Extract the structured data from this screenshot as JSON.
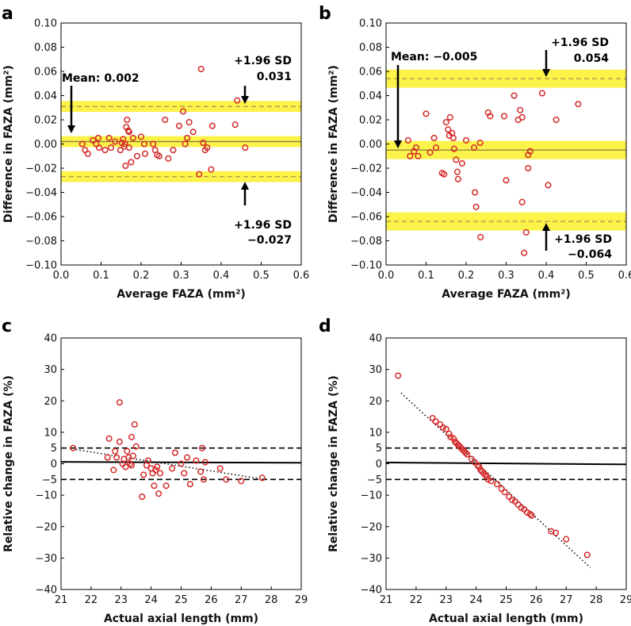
{
  "figure": {
    "background": "#ffffff"
  },
  "chart_data": [
    {
      "id": "a",
      "type": "scatter",
      "panel_label": "a",
      "xlabel": "Average FAZA (mm²)",
      "ylabel": "Difference in FAZA (mm²)",
      "xlim": [
        0,
        0.6
      ],
      "ylim": [
        -0.1,
        0.1
      ],
      "xticks": [
        0,
        0.1,
        0.2,
        0.3,
        0.4,
        0.5,
        0.6
      ],
      "xtick_labels": [
        "0.0",
        "0.1",
        "0.2",
        "0.3",
        "0.4",
        "0.5",
        "0.6"
      ],
      "yticks": [
        -0.1,
        -0.08,
        -0.06,
        -0.04,
        -0.02,
        0,
        0.02,
        0.04,
        0.06,
        0.08,
        0.1
      ],
      "ytick_labels": [
        "−0.10",
        "−0.08",
        "−0.06",
        "−0.04",
        "−0.02",
        "0.00",
        "0.02",
        "0.04",
        "0.06",
        "0.08",
        "0.10"
      ],
      "mean": 0.002,
      "upper_loa": 0.031,
      "lower_loa": -0.027,
      "band_halfwidth": 0.0045,
      "colors": {
        "band": "#fbf24a",
        "marker": "#d42a2a",
        "dash": "#b5894a",
        "mean_line": "#8a7d40"
      },
      "annotations": {
        "mean_label": "Mean: 0.002",
        "upper_label": "+1.96 SD",
        "upper_value": "0.031",
        "lower_label": "+1.96 SD",
        "lower_value": "−0.027"
      },
      "points": [
        [
          0.053,
          0.0
        ],
        [
          0.06,
          -0.005
        ],
        [
          0.067,
          -0.008
        ],
        [
          0.08,
          0.003
        ],
        [
          0.088,
          0.0
        ],
        [
          0.093,
          0.005
        ],
        [
          0.095,
          -0.003
        ],
        [
          0.11,
          -0.005
        ],
        [
          0.12,
          0.005
        ],
        [
          0.125,
          -0.003
        ],
        [
          0.135,
          0.002
        ],
        [
          0.148,
          -0.005
        ],
        [
          0.152,
          0.001
        ],
        [
          0.155,
          0.004
        ],
        [
          0.158,
          -0.002
        ],
        [
          0.16,
          0.0
        ],
        [
          0.161,
          -0.018
        ],
        [
          0.163,
          0.014
        ],
        [
          0.165,
          0.02
        ],
        [
          0.168,
          0.011
        ],
        [
          0.17,
          0.01
        ],
        [
          0.17,
          -0.003
        ],
        [
          0.175,
          -0.015
        ],
        [
          0.18,
          0.005
        ],
        [
          0.19,
          -0.01
        ],
        [
          0.2,
          0.006
        ],
        [
          0.208,
          0.0
        ],
        [
          0.21,
          -0.008
        ],
        [
          0.23,
          0.0
        ],
        [
          0.235,
          -0.005
        ],
        [
          0.24,
          -0.009
        ],
        [
          0.245,
          -0.01
        ],
        [
          0.26,
          0.02
        ],
        [
          0.268,
          -0.012
        ],
        [
          0.28,
          -0.005
        ],
        [
          0.295,
          0.015
        ],
        [
          0.305,
          0.027
        ],
        [
          0.31,
          0.0
        ],
        [
          0.315,
          0.005
        ],
        [
          0.32,
          0.018
        ],
        [
          0.33,
          0.01
        ],
        [
          0.345,
          -0.025
        ],
        [
          0.35,
          0.062
        ],
        [
          0.355,
          0.001
        ],
        [
          0.36,
          -0.005
        ],
        [
          0.365,
          -0.003
        ],
        [
          0.375,
          -0.021
        ],
        [
          0.378,
          0.015
        ],
        [
          0.435,
          0.016
        ],
        [
          0.44,
          0.036
        ],
        [
          0.46,
          -0.003
        ]
      ]
    },
    {
      "id": "b",
      "type": "scatter",
      "panel_label": "b",
      "xlabel": "Average FAZA (mm²)",
      "ylabel": "Difference in FAZA (mm²)",
      "xlim": [
        0,
        0.6
      ],
      "ylim": [
        -0.1,
        0.1
      ],
      "xticks": [
        0,
        0.1,
        0.2,
        0.3,
        0.4,
        0.5,
        0.6
      ],
      "xtick_labels": [
        "0.0",
        "0.1",
        "0.2",
        "0.3",
        "0.4",
        "0.5",
        "0.6"
      ],
      "yticks": [
        -0.1,
        -0.08,
        -0.06,
        -0.04,
        -0.02,
        0,
        0.02,
        0.04,
        0.06,
        0.08,
        0.1
      ],
      "ytick_labels": [
        "−0.10",
        "−0.08",
        "−0.06",
        "−0.04",
        "−0.02",
        "0.00",
        "0.02",
        "0.04",
        "0.06",
        "0.08",
        "0.10"
      ],
      "mean": -0.005,
      "upper_loa": 0.054,
      "lower_loa": -0.064,
      "band_halfwidth": 0.0075,
      "colors": {
        "band": "#fbf24a",
        "marker": "#d42a2a",
        "dash": "#b5894a",
        "mean_line": "#8a7d40"
      },
      "annotations": {
        "mean_label": "Mean: −0.005",
        "upper_label": "+1.96 SD",
        "upper_value": "0.054",
        "lower_label": "+1.96 SD",
        "lower_value": "−0.064"
      },
      "points": [
        [
          0.055,
          0.003
        ],
        [
          0.06,
          -0.01
        ],
        [
          0.07,
          -0.006
        ],
        [
          0.075,
          -0.003
        ],
        [
          0.08,
          -0.01
        ],
        [
          0.1,
          0.025
        ],
        [
          0.11,
          -0.007
        ],
        [
          0.12,
          0.005
        ],
        [
          0.125,
          -0.003
        ],
        [
          0.14,
          -0.024
        ],
        [
          0.145,
          -0.025
        ],
        [
          0.15,
          0.018
        ],
        [
          0.155,
          0.012
        ],
        [
          0.158,
          0.007
        ],
        [
          0.16,
          0.022
        ],
        [
          0.165,
          0.009
        ],
        [
          0.168,
          0.005
        ],
        [
          0.17,
          -0.004
        ],
        [
          0.175,
          -0.013
        ],
        [
          0.178,
          -0.023
        ],
        [
          0.18,
          -0.029
        ],
        [
          0.19,
          -0.016
        ],
        [
          0.2,
          0.003
        ],
        [
          0.22,
          -0.003
        ],
        [
          0.222,
          -0.04
        ],
        [
          0.225,
          -0.052
        ],
        [
          0.235,
          0.001
        ],
        [
          0.236,
          -0.077
        ],
        [
          0.255,
          0.026
        ],
        [
          0.26,
          0.023
        ],
        [
          0.295,
          0.023
        ],
        [
          0.3,
          -0.03
        ],
        [
          0.32,
          0.04
        ],
        [
          0.33,
          0.02
        ],
        [
          0.335,
          0.028
        ],
        [
          0.34,
          0.022
        ],
        [
          0.34,
          -0.048
        ],
        [
          0.35,
          -0.073
        ],
        [
          0.345,
          -0.09
        ],
        [
          0.355,
          -0.009
        ],
        [
          0.355,
          -0.02
        ],
        [
          0.36,
          -0.006
        ],
        [
          0.39,
          0.042
        ],
        [
          0.405,
          -0.034
        ],
        [
          0.425,
          0.02
        ],
        [
          0.48,
          0.033
        ]
      ]
    },
    {
      "id": "c",
      "type": "scatter",
      "panel_label": "c",
      "xlabel": "Actual axial length  (mm)",
      "ylabel": "Relative change in FAZA (%)",
      "xlim": [
        21,
        29
      ],
      "ylim": [
        -40,
        40
      ],
      "xticks": [
        21,
        22,
        23,
        24,
        25,
        26,
        27,
        28,
        29
      ],
      "xtick_labels": [
        "21",
        "22",
        "23",
        "24",
        "25",
        "26",
        "27",
        "28",
        "29"
      ],
      "yticks": [
        -40,
        -30,
        -20,
        -10,
        -5,
        0,
        5,
        10,
        20,
        30,
        40
      ],
      "ytick_labels": [
        "−40",
        "−30",
        "−20",
        "−10",
        "−5",
        "0",
        "5",
        "10",
        "20",
        "30",
        "40"
      ],
      "hlines_dashed": [
        5,
        -5
      ],
      "mean_line_ends": [
        0.6,
        0.3
      ],
      "trend_line": [
        [
          21.5,
          4.5
        ],
        [
          27.8,
          -5.0
        ]
      ],
      "colors": {
        "marker": "#d42a2a",
        "line": "#000000"
      },
      "points": [
        [
          21.4,
          5
        ],
        [
          22.55,
          2
        ],
        [
          22.6,
          8
        ],
        [
          22.75,
          -2
        ],
        [
          22.8,
          4
        ],
        [
          22.85,
          2
        ],
        [
          22.95,
          7
        ],
        [
          22.95,
          19.5
        ],
        [
          23.05,
          0
        ],
        [
          23.1,
          1.5
        ],
        [
          23.15,
          -1
        ],
        [
          23.2,
          4
        ],
        [
          23.25,
          2
        ],
        [
          23.3,
          0
        ],
        [
          23.35,
          -0.5
        ],
        [
          23.35,
          8.5
        ],
        [
          23.4,
          2.5
        ],
        [
          23.45,
          12.5
        ],
        [
          23.5,
          5.5
        ],
        [
          23.7,
          -10.5
        ],
        [
          23.75,
          -3.5
        ],
        [
          23.85,
          -0.5
        ],
        [
          23.9,
          1
        ],
        [
          24.0,
          -1.5
        ],
        [
          24.05,
          -3
        ],
        [
          24.1,
          -7
        ],
        [
          24.15,
          -2
        ],
        [
          24.2,
          -1
        ],
        [
          24.25,
          -9.5
        ],
        [
          24.3,
          -3
        ],
        [
          24.5,
          -7
        ],
        [
          24.7,
          -1.5
        ],
        [
          24.8,
          3.5
        ],
        [
          25.0,
          0
        ],
        [
          25.1,
          -3
        ],
        [
          25.2,
          2
        ],
        [
          25.3,
          -6.5
        ],
        [
          25.5,
          1
        ],
        [
          25.65,
          -2.5
        ],
        [
          25.7,
          5
        ],
        [
          25.75,
          -5
        ],
        [
          25.8,
          0.5
        ],
        [
          26.3,
          -1.5
        ],
        [
          26.5,
          -5
        ],
        [
          27.0,
          -5.5
        ],
        [
          27.7,
          -4.5
        ]
      ]
    },
    {
      "id": "d",
      "type": "scatter",
      "panel_label": "d",
      "xlabel": "Actual axial length  (mm)",
      "ylabel": "Relative change in FAZA (%)",
      "xlim": [
        21,
        29
      ],
      "ylim": [
        -40,
        40
      ],
      "xticks": [
        21,
        22,
        23,
        24,
        25,
        26,
        27,
        28,
        29
      ],
      "xtick_labels": [
        "21",
        "22",
        "23",
        "24",
        "25",
        "26",
        "27",
        "28",
        "29"
      ],
      "yticks": [
        -40,
        -30,
        -20,
        -10,
        -5,
        0,
        5,
        10,
        20,
        30,
        40
      ],
      "ytick_labels": [
        "−40",
        "−30",
        "−20",
        "−10",
        "−5",
        "0",
        "5",
        "10",
        "20",
        "30",
        "40"
      ],
      "hlines_dashed": [
        5,
        -5
      ],
      "mean_line_ends": [
        0.4,
        -0.2
      ],
      "trend_line": [
        [
          21.5,
          22.5
        ],
        [
          27.8,
          -33.0
        ]
      ],
      "colors": {
        "marker": "#d42a2a",
        "line": "#000000"
      },
      "points": [
        [
          21.4,
          28
        ],
        [
          22.55,
          14.5
        ],
        [
          22.65,
          13.5
        ],
        [
          22.8,
          12.5
        ],
        [
          22.9,
          11.5
        ],
        [
          23.0,
          11
        ],
        [
          23.1,
          9.5
        ],
        [
          23.15,
          8.5
        ],
        [
          23.25,
          8
        ],
        [
          23.3,
          7
        ],
        [
          23.35,
          6.5
        ],
        [
          23.4,
          6
        ],
        [
          23.45,
          5.5
        ],
        [
          23.5,
          5
        ],
        [
          23.55,
          4.5
        ],
        [
          23.6,
          4
        ],
        [
          23.65,
          3.5
        ],
        [
          23.7,
          3
        ],
        [
          23.85,
          1.5
        ],
        [
          23.95,
          0.5
        ],
        [
          24.05,
          -0.5
        ],
        [
          24.1,
          -1
        ],
        [
          24.15,
          -2
        ],
        [
          24.2,
          -2.5
        ],
        [
          24.25,
          -3
        ],
        [
          24.3,
          -3.5
        ],
        [
          24.35,
          -4
        ],
        [
          24.4,
          -5
        ],
        [
          24.5,
          -5.5
        ],
        [
          24.7,
          -6.5
        ],
        [
          24.85,
          -8
        ],
        [
          24.95,
          -9
        ],
        [
          25.1,
          -10.5
        ],
        [
          25.2,
          -11.5
        ],
        [
          25.3,
          -12
        ],
        [
          25.4,
          -13
        ],
        [
          25.5,
          -14
        ],
        [
          25.6,
          -14.5
        ],
        [
          25.7,
          -15.5
        ],
        [
          25.8,
          -16
        ],
        [
          25.85,
          -16.5
        ],
        [
          26.5,
          -21.5
        ],
        [
          26.65,
          -22
        ],
        [
          27.0,
          -24
        ],
        [
          27.7,
          -29
        ]
      ]
    }
  ]
}
